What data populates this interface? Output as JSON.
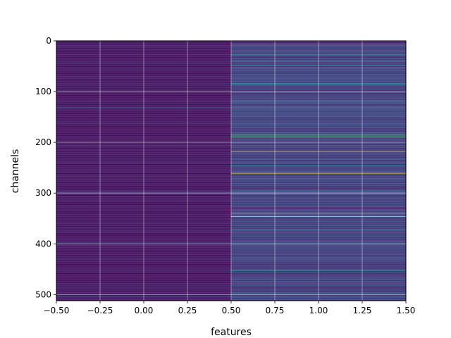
{
  "chart_data": {
    "type": "heatmap",
    "title": "",
    "xlabel": "features",
    "ylabel": "channels",
    "xlim": [
      -0.5,
      1.5
    ],
    "ylim": [
      512,
      0
    ],
    "xticks": [
      -0.5,
      -0.25,
      0.0,
      0.25,
      0.5,
      0.75,
      1.0,
      1.25,
      1.5
    ],
    "xtick_labels": [
      "−0.50",
      "−0.25",
      "0.00",
      "0.25",
      "0.50",
      "0.75",
      "1.00",
      "1.25",
      "1.50"
    ],
    "yticks": [
      0,
      100,
      200,
      300,
      400,
      500
    ],
    "ytick_labels": [
      "0",
      "100",
      "200",
      "300",
      "400",
      "500"
    ],
    "colormap": "viridis",
    "grid": true,
    "columns": 2,
    "rows": 512,
    "column_0": {
      "base_value": 0.05,
      "bright_channels": [
        {
          "channel": 132,
          "value": 0.25
        },
        {
          "channel": 298,
          "value": 0.25
        },
        {
          "channel": 398,
          "value": 0.3
        },
        {
          "channel": 503,
          "value": 0.2
        }
      ]
    },
    "column_1": {
      "base_value": 0.18,
      "bright_channels": [
        {
          "channel": 8,
          "value": 0.45
        },
        {
          "channel": 22,
          "value": 0.45
        },
        {
          "channel": 28,
          "value": 0.5
        },
        {
          "channel": 48,
          "value": 0.4
        },
        {
          "channel": 84,
          "value": 0.45
        },
        {
          "channel": 118,
          "value": 0.35
        },
        {
          "channel": 133,
          "value": 0.45
        },
        {
          "channel": 186,
          "value": 0.7
        },
        {
          "channel": 189,
          "value": 0.6
        },
        {
          "channel": 218,
          "value": 0.95
        },
        {
          "channel": 245,
          "value": 0.4
        },
        {
          "channel": 261,
          "value": 1.0
        },
        {
          "channel": 296,
          "value": 0.4
        },
        {
          "channel": 341,
          "value": 0.7
        },
        {
          "channel": 346,
          "value": 0.95
        },
        {
          "channel": 372,
          "value": 0.4
        },
        {
          "channel": 453,
          "value": 0.45
        },
        {
          "channel": 498,
          "value": 0.4
        }
      ]
    }
  }
}
